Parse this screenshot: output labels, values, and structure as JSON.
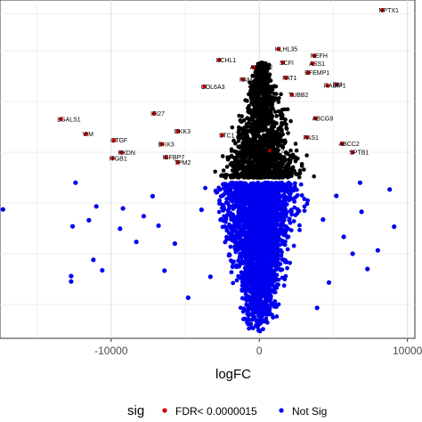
{
  "chart_data": {
    "type": "scatter",
    "title": "",
    "xlabel": "logFC",
    "ylabel": "",
    "xlim": [
      -17500,
      10500
    ],
    "ylim": [
      0,
      1.0
    ],
    "grid": true,
    "x_ticks": [
      -10000,
      0,
      10000
    ],
    "x_tick_labels": [
      "-10000",
      "0",
      "10000"
    ],
    "legend": {
      "title": "sig",
      "position": "bottom",
      "entries": [
        {
          "label": "FDR< 0.0000015",
          "color": "#cc0000"
        },
        {
          "label": "Not Sig",
          "color": "#0000ee"
        }
      ]
    },
    "series": [
      {
        "name": "FDR< 0.0000015",
        "color": "#cc0000",
        "points": [
          {
            "x": 8300,
            "y": 0.97,
            "label": "NPTX1"
          },
          {
            "x": 1300,
            "y": 0.855,
            "label": "KLHL35"
          },
          {
            "x": 3700,
            "y": 0.835,
            "label": "NEFH"
          },
          {
            "x": 1600,
            "y": 0.815,
            "label": "SCFI"
          },
          {
            "x": 3600,
            "y": 0.812,
            "label": "ASS1"
          },
          {
            "x": -2700,
            "y": 0.823,
            "label": "UCHL1"
          },
          {
            "x": -400,
            "y": 0.801,
            "label": "ASB572"
          },
          {
            "x": 3300,
            "y": 0.785,
            "label": "EFEMP1"
          },
          {
            "x": 4600,
            "y": 0.747,
            "label": "RASIP1"
          },
          {
            "x": 5200,
            "y": 0.75,
            "label": "DM"
          },
          {
            "x": -3700,
            "y": 0.744,
            "label": "COL6A3"
          },
          {
            "x": -13400,
            "y": 0.648,
            "label": "LGALS1"
          },
          {
            "x": -7100,
            "y": 0.664,
            "label": "IFI27"
          },
          {
            "x": -11700,
            "y": 0.604,
            "label": "VIM"
          },
          {
            "x": -9800,
            "y": 0.585,
            "label": "CTGF"
          },
          {
            "x": -5500,
            "y": 0.612,
            "label": "DKK3"
          },
          {
            "x": -6600,
            "y": 0.574,
            "label": "DKK3"
          },
          {
            "x": -9300,
            "y": 0.549,
            "label": "PXDN"
          },
          {
            "x": -9900,
            "y": 0.532,
            "label": "ITGB1"
          },
          {
            "x": -6300,
            "y": 0.535,
            "label": "IGFBP7"
          },
          {
            "x": -5500,
            "y": 0.52,
            "label": "TPM2"
          },
          {
            "x": -2500,
            "y": 0.6,
            "label": "STC1"
          },
          {
            "x": 3800,
            "y": 0.65,
            "label": "ABCG9"
          },
          {
            "x": 3200,
            "y": 0.594,
            "label": "PAS1"
          },
          {
            "x": 5600,
            "y": 0.575,
            "label": "ABCC2"
          },
          {
            "x": 6300,
            "y": 0.55,
            "label": "SPTB1"
          },
          {
            "x": 2200,
            "y": 0.72,
            "label": "TUBB2"
          },
          {
            "x": 1800,
            "y": 0.77,
            "label": "FAT1"
          },
          {
            "x": -1100,
            "y": 0.765,
            "label": "FAM3C"
          },
          {
            "x": 700,
            "y": 0.555,
            "label": "TIMP2"
          }
        ]
      },
      {
        "name": "Not Sig",
        "color": "#0000ee",
        "points": [
          {
            "x": -17300,
            "y": 0.381
          },
          {
            "x": -12600,
            "y": 0.331
          },
          {
            "x": -12700,
            "y": 0.184
          },
          {
            "x": -12700,
            "y": 0.168
          },
          {
            "x": -10600,
            "y": 0.201
          },
          {
            "x": -9400,
            "y": 0.324
          },
          {
            "x": -11000,
            "y": 0.39
          },
          {
            "x": -11500,
            "y": 0.349
          },
          {
            "x": -9200,
            "y": 0.384
          },
          {
            "x": -11200,
            "y": 0.232
          },
          {
            "x": -7800,
            "y": 0.361
          },
          {
            "x": -6800,
            "y": 0.333
          },
          {
            "x": -6400,
            "y": 0.2
          },
          {
            "x": -7200,
            "y": 0.42
          },
          {
            "x": -5700,
            "y": 0.28
          },
          {
            "x": -4800,
            "y": 0.12
          },
          {
            "x": -8300,
            "y": 0.285
          },
          {
            "x": -12400,
            "y": 0.46
          },
          {
            "x": 8800,
            "y": 0.44
          },
          {
            "x": 9100,
            "y": 0.33
          },
          {
            "x": 6900,
            "y": 0.374
          },
          {
            "x": 6300,
            "y": 0.25
          },
          {
            "x": 5200,
            "y": 0.421
          },
          {
            "x": 5700,
            "y": 0.3
          },
          {
            "x": 4700,
            "y": 0.165
          },
          {
            "x": 6800,
            "y": 0.46
          },
          {
            "x": 3900,
            "y": 0.09
          },
          {
            "x": 4300,
            "y": 0.351
          },
          {
            "x": -3900,
            "y": 0.38
          },
          {
            "x": -3300,
            "y": 0.182
          },
          {
            "x": 7300,
            "y": 0.205
          },
          {
            "x": 8000,
            "y": 0.26
          }
        ]
      }
    ]
  }
}
